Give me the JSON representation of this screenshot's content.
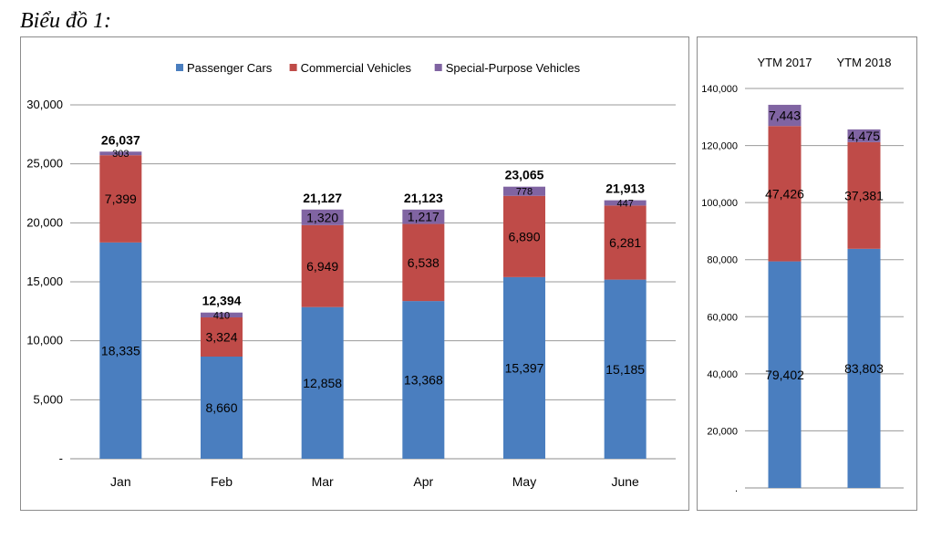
{
  "heading": "Biểu đồ 1:",
  "colors": {
    "passenger": "#4a7ebf",
    "commercial": "#bf4b48",
    "special": "#8064a2"
  },
  "chart_data": [
    {
      "type": "bar",
      "stacked": true,
      "title": "",
      "xlabel": "",
      "ylabel": "",
      "categories": [
        "Jan",
        "Feb",
        "Mar",
        "Apr",
        "May",
        "June"
      ],
      "series": [
        {
          "name": "Passenger Cars",
          "values": [
            18335,
            8660,
            12858,
            13368,
            15397,
            15185
          ],
          "labels": [
            "18,335",
            "8,660",
            "12,858",
            "13,368",
            "15,397",
            "15,185"
          ]
        },
        {
          "name": "Commercial Vehicles",
          "values": [
            7399,
            3324,
            6949,
            6538,
            6890,
            6281
          ],
          "labels": [
            "7,399",
            "3,324",
            "6,949",
            "6,538",
            "6,890",
            "6,281"
          ]
        },
        {
          "name": "Special-Purpose Vehicles",
          "values": [
            303,
            410,
            1320,
            1217,
            778,
            447
          ],
          "labels": [
            "303",
            "410",
            "1,320",
            "1,217",
            "778",
            "447"
          ]
        }
      ],
      "totals": [
        26037,
        12394,
        21127,
        21123,
        23065,
        21913
      ],
      "total_labels": [
        "26,037",
        "12,394",
        "21,127",
        "21,123",
        "23,065",
        "21,913"
      ],
      "ylim": [
        0,
        30000
      ],
      "yticks": [
        0,
        5000,
        10000,
        15000,
        20000,
        25000,
        30000
      ],
      "ytick_labels": [
        "-",
        "5,000",
        "10,000",
        "15,000",
        "20,000",
        "25,000",
        "30,000"
      ],
      "grid": true,
      "legend": "top"
    },
    {
      "type": "bar",
      "stacked": true,
      "title": "",
      "categories": [
        "YTM 2017",
        "YTM 2018"
      ],
      "category_position": "top",
      "series": [
        {
          "name": "Passenger Cars",
          "values": [
            79402,
            83803
          ],
          "labels": [
            "79,402",
            "83,803"
          ]
        },
        {
          "name": "Commercial Vehicles",
          "values": [
            47426,
            37381
          ],
          "labels": [
            "47,426",
            "37,381"
          ]
        },
        {
          "name": "Special-Purpose Vehicles",
          "values": [
            7443,
            4475
          ],
          "labels": [
            "7,443",
            "4,475"
          ]
        }
      ],
      "ylim": [
        0,
        140000
      ],
      "yticks": [
        0,
        20000,
        40000,
        60000,
        80000,
        100000,
        120000,
        140000
      ],
      "ytick_labels": [
        ".",
        "20,000",
        "40,000",
        "60,000",
        "80,000",
        "100,000",
        "120,000",
        "140,000"
      ],
      "grid": true,
      "legend": "none"
    }
  ]
}
